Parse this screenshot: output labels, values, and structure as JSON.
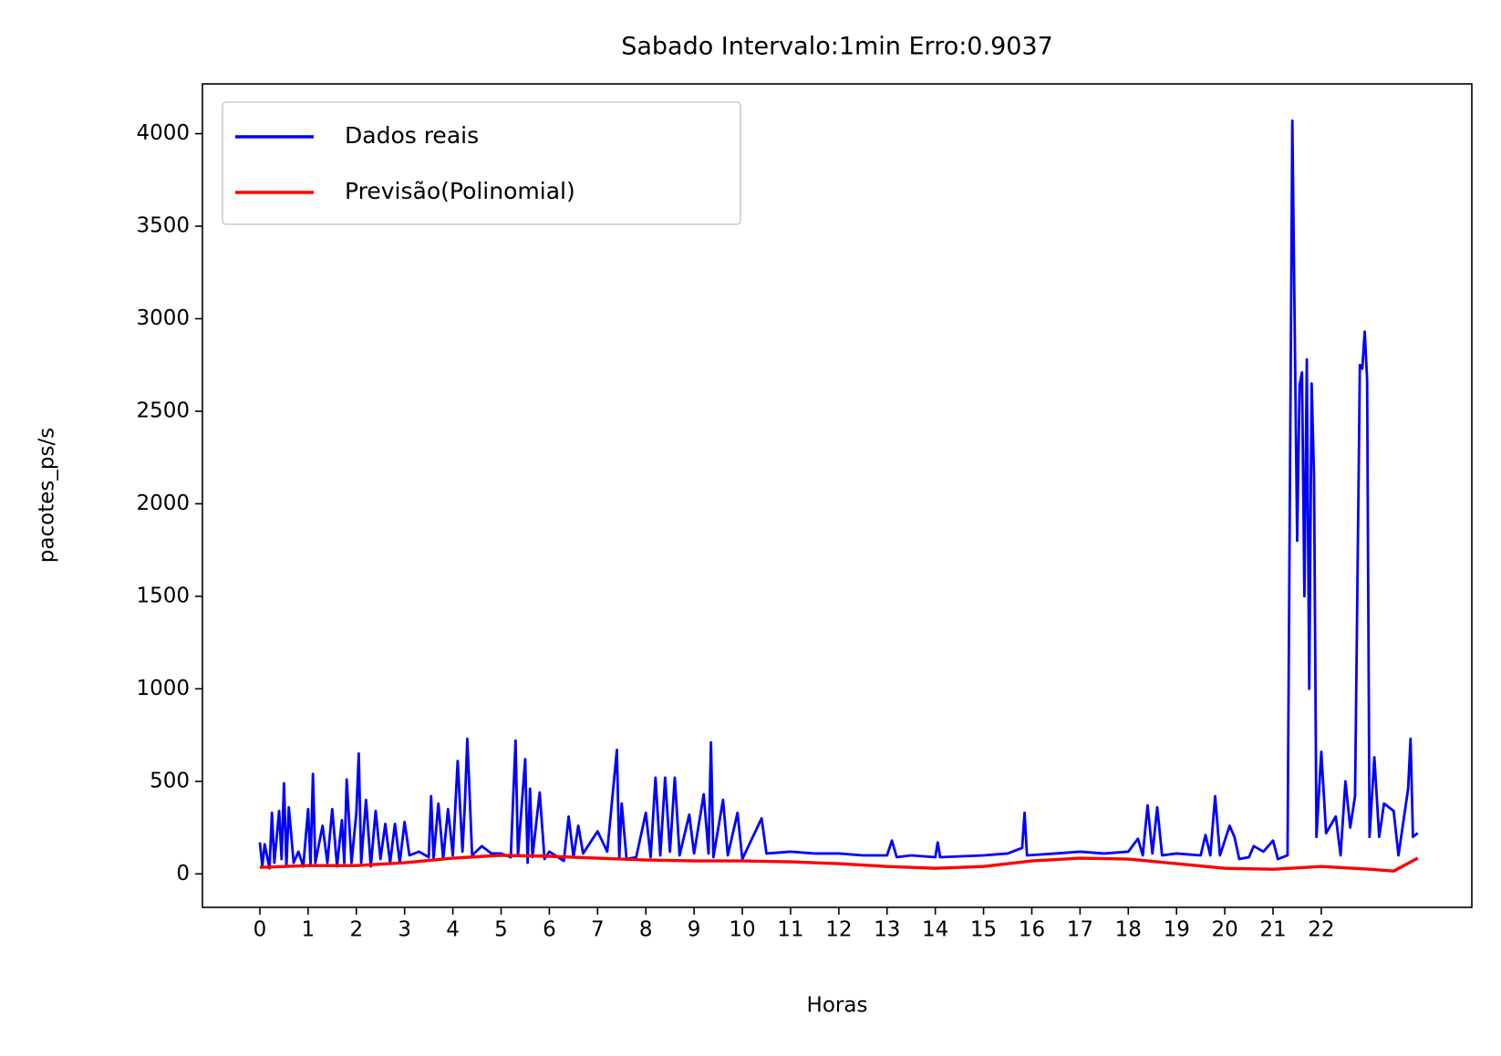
{
  "chart_data": {
    "type": "line",
    "title": "Sabado Intervalo:1min Erro:0.9037",
    "x_label": "Horas",
    "y_label": "pacotes_ps/s",
    "xlim": [
      -1.19,
      25.12
    ],
    "ylim": [
      -181,
      4269
    ],
    "xticks": [
      0,
      1,
      2,
      3,
      4,
      5,
      6,
      7,
      8,
      9,
      10,
      11,
      12,
      13,
      14,
      15,
      16,
      17,
      18,
      19,
      20,
      21,
      22
    ],
    "yticks": [
      0,
      500,
      1000,
      1500,
      2000,
      2500,
      3000,
      3500,
      4000
    ],
    "legend": "upper left",
    "series": [
      {
        "name": "Dados reais",
        "color": "#0000ff",
        "x": [
          0,
          0.05,
          0.1,
          0.2,
          0.25,
          0.3,
          0.4,
          0.45,
          0.5,
          0.55,
          0.6,
          0.7,
          0.8,
          0.9,
          1.0,
          1.05,
          1.1,
          1.15,
          1.3,
          1.4,
          1.5,
          1.6,
          1.7,
          1.75,
          1.8,
          1.9,
          2.0,
          2.05,
          2.1,
          2.2,
          2.3,
          2.4,
          2.5,
          2.6,
          2.7,
          2.8,
          2.9,
          3.0,
          3.1,
          3.3,
          3.5,
          3.55,
          3.6,
          3.7,
          3.8,
          3.9,
          4.0,
          4.1,
          4.2,
          4.25,
          4.3,
          4.4,
          4.6,
          4.8,
          5.0,
          5.2,
          5.3,
          5.35,
          5.5,
          5.55,
          5.6,
          5.65,
          5.8,
          5.9,
          6.0,
          6.3,
          6.4,
          6.5,
          6.6,
          6.7,
          7.0,
          7.2,
          7.4,
          7.45,
          7.5,
          7.6,
          7.8,
          8.0,
          8.1,
          8.2,
          8.3,
          8.4,
          8.5,
          8.6,
          8.7,
          8.9,
          9.0,
          9.2,
          9.3,
          9.35,
          9.4,
          9.6,
          9.7,
          9.9,
          10.0,
          10.4,
          10.5,
          11,
          11.5,
          12,
          12.5,
          13,
          13.1,
          13.2,
          13.5,
          14,
          14.05,
          14.1,
          15,
          15.5,
          15.8,
          15.85,
          15.9,
          16.5,
          17,
          17.5,
          18,
          18.2,
          18.3,
          18.4,
          18.5,
          18.6,
          18.7,
          19,
          19.5,
          19.6,
          19.7,
          19.8,
          19.9,
          20.1,
          20.2,
          20.3,
          20.5,
          20.6,
          20.8,
          21.0,
          21.1,
          21.3,
          21.4,
          21.45,
          21.5,
          21.55,
          21.6,
          21.65,
          21.7,
          21.75,
          21.8,
          21.85,
          21.9,
          22.0,
          22.1,
          22.3,
          22.4,
          22.5,
          22.6,
          22.7,
          22.8,
          22.85,
          22.9,
          22.95,
          23.0,
          23.1,
          23.2,
          23.3,
          23.5,
          23.6,
          23.8,
          23.85,
          23.9,
          24.0
        ],
        "values": [
          170,
          40,
          160,
          30,
          330,
          60,
          340,
          80,
          490,
          40,
          360,
          60,
          120,
          40,
          350,
          50,
          540,
          60,
          260,
          60,
          350,
          40,
          290,
          60,
          510,
          60,
          330,
          650,
          60,
          400,
          40,
          340,
          80,
          270,
          60,
          270,
          60,
          280,
          100,
          120,
          90,
          420,
          80,
          380,
          80,
          350,
          100,
          610,
          120,
          380,
          730,
          100,
          150,
          110,
          110,
          90,
          720,
          100,
          620,
          60,
          460,
          90,
          440,
          80,
          120,
          70,
          310,
          90,
          260,
          110,
          230,
          120,
          670,
          90,
          380,
          80,
          90,
          330,
          90,
          520,
          100,
          520,
          120,
          520,
          100,
          320,
          110,
          430,
          110,
          710,
          90,
          400,
          100,
          330,
          80,
          300,
          110,
          120,
          110,
          110,
          100,
          100,
          180,
          90,
          100,
          90,
          170,
          90,
          100,
          110,
          140,
          330,
          100,
          110,
          120,
          110,
          120,
          190,
          100,
          370,
          110,
          360,
          100,
          110,
          100,
          210,
          100,
          420,
          100,
          260,
          200,
          80,
          90,
          150,
          120,
          180,
          80,
          100,
          4070,
          2930,
          1800,
          2640,
          2710,
          1500,
          2780,
          1000,
          2650,
          2140,
          200,
          660,
          220,
          310,
          100,
          500,
          250,
          420,
          2750,
          2730,
          2930,
          2670,
          200,
          630,
          200,
          380,
          340,
          100,
          460,
          730,
          200,
          220
        ]
      },
      {
        "name": "Previsão(Polinomial)",
        "color": "#ff0000",
        "x": [
          0,
          1,
          2,
          3,
          4,
          5,
          6,
          7,
          8,
          9,
          10,
          11,
          12,
          13,
          14,
          15,
          16,
          17,
          18,
          19,
          20,
          21,
          22,
          23,
          23.5,
          24
        ],
        "values": [
          35,
          45,
          45,
          60,
          85,
          100,
          95,
          85,
          75,
          70,
          70,
          65,
          55,
          40,
          30,
          40,
          70,
          85,
          80,
          55,
          30,
          25,
          40,
          25,
          15,
          85
        ]
      }
    ]
  }
}
